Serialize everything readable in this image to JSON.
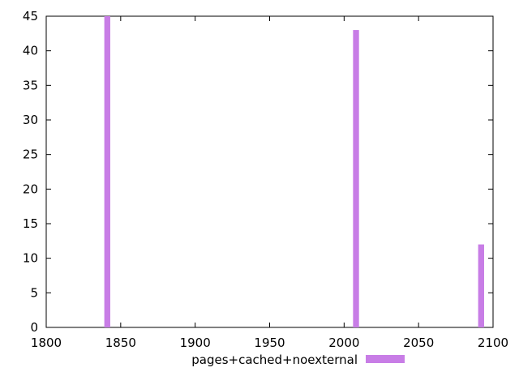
{
  "chart_data": {
    "type": "bar",
    "x": [
      1841,
      2008,
      2092
    ],
    "series": [
      {
        "name": "pages+cached+noexternal",
        "values": [
          45,
          43,
          12
        ],
        "color": "#c87de6"
      }
    ],
    "xlim": [
      1800,
      2100
    ],
    "ylim": [
      0,
      45
    ],
    "xticks": [
      1800,
      1850,
      1900,
      1950,
      2000,
      2050,
      2100
    ],
    "yticks": [
      0,
      5,
      10,
      15,
      20,
      25,
      30,
      35,
      40,
      45
    ],
    "bar_width": 4,
    "grid": false,
    "legend_position": "bottom"
  }
}
